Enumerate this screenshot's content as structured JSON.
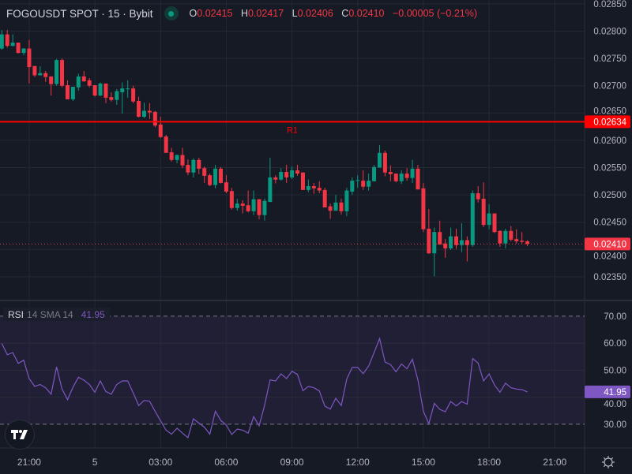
{
  "header": {
    "symbol": "FOGOUSDT SPOT · 15 · Bybit",
    "market_status_color": "#089981",
    "open_label": "O",
    "open": "0.02415",
    "high_label": "H",
    "high": "0.02417",
    "low_label": "L",
    "low": "0.02406",
    "close_label": "C",
    "close": "0.02410",
    "change": "−0.00005 (−0.21%)"
  },
  "rsi_legend": {
    "name": "RSI",
    "params": "14 SMA 14",
    "value": "41.95"
  },
  "colors": {
    "up": "#089981",
    "down": "#f23645",
    "rsi": "#7e57c2",
    "level_line": "#ff0000",
    "background": "#161a25",
    "grid": "#2a2e39"
  },
  "x_ticks": [
    "21:00",
    "5",
    "03:00",
    "06:00",
    "09:00",
    "12:00",
    "15:00",
    "18:00",
    "21:00"
  ],
  "icons": {
    "logo": "tradingview-logo",
    "settings": "gear-icon"
  },
  "chart_data": [
    {
      "type": "candlestick",
      "title": "FOGOUSDT SPOT · 15 · Bybit",
      "ylim": [
        0.02308,
        0.02857
      ],
      "y_ticks": [
        "0.02850",
        "0.02800",
        "0.02750",
        "0.02700",
        "0.02650",
        "0.02600",
        "0.02550",
        "0.02500",
        "0.02450",
        "0.02400",
        "0.02350"
      ],
      "grid": true,
      "horizontal_line": {
        "label": "R1",
        "value": 0.02634,
        "value_label": "0.02634"
      },
      "last_price": {
        "value": 0.0241,
        "value_label": "0.02410"
      },
      "candles_ohlc": [
        [
          0.02768,
          0.02802,
          0.02766,
          0.02794
        ],
        [
          0.02794,
          0.02802,
          0.0277,
          0.02773
        ],
        [
          0.02773,
          0.02794,
          0.02772,
          0.02779
        ],
        [
          0.02779,
          0.02779,
          0.02759,
          0.0276
        ],
        [
          0.0276,
          0.02769,
          0.02756,
          0.02768
        ],
        [
          0.02768,
          0.02784,
          0.02704,
          0.02734
        ],
        [
          0.02736,
          0.02736,
          0.02716,
          0.02719
        ],
        [
          0.02719,
          0.02736,
          0.02719,
          0.02723
        ],
        [
          0.02723,
          0.02727,
          0.02707,
          0.02716
        ],
        [
          0.02717,
          0.02717,
          0.02682,
          0.02703
        ],
        [
          0.02703,
          0.02749,
          0.027,
          0.02747
        ],
        [
          0.02747,
          0.0275,
          0.02697,
          0.027
        ],
        [
          0.02701,
          0.0271,
          0.02675,
          0.02675
        ],
        [
          0.02675,
          0.02698,
          0.02672,
          0.02698
        ],
        [
          0.02697,
          0.02722,
          0.02691,
          0.02717
        ],
        [
          0.02717,
          0.02727,
          0.02707,
          0.02708
        ],
        [
          0.0271,
          0.02714,
          0.02697,
          0.027
        ],
        [
          0.02701,
          0.02701,
          0.0268,
          0.02682
        ],
        [
          0.02682,
          0.02706,
          0.02681,
          0.02704
        ],
        [
          0.02704,
          0.02704,
          0.02668,
          0.02678
        ],
        [
          0.02679,
          0.02688,
          0.02671,
          0.02674
        ],
        [
          0.02674,
          0.02694,
          0.02665,
          0.0269
        ],
        [
          0.02688,
          0.02706,
          0.02649,
          0.02695
        ],
        [
          0.02695,
          0.0271,
          0.02678,
          0.02695
        ],
        [
          0.02695,
          0.027,
          0.02668,
          0.02671
        ],
        [
          0.02672,
          0.0268,
          0.02642,
          0.02643
        ],
        [
          0.02643,
          0.02669,
          0.02641,
          0.02654
        ],
        [
          0.02654,
          0.02668,
          0.02639,
          0.02651
        ],
        [
          0.02652,
          0.02654,
          0.02624,
          0.02627
        ],
        [
          0.02629,
          0.02643,
          0.02604,
          0.02606
        ],
        [
          0.02607,
          0.0261,
          0.02577,
          0.02577
        ],
        [
          0.02578,
          0.02586,
          0.02561,
          0.02564
        ],
        [
          0.02564,
          0.02574,
          0.02558,
          0.02573
        ],
        [
          0.02573,
          0.02586,
          0.02549,
          0.02554
        ],
        [
          0.02555,
          0.02565,
          0.02536,
          0.02541
        ],
        [
          0.02541,
          0.02567,
          0.02532,
          0.02564
        ],
        [
          0.02564,
          0.02568,
          0.02538,
          0.02548
        ],
        [
          0.02549,
          0.02552,
          0.02522,
          0.02535
        ],
        [
          0.02536,
          0.02539,
          0.02516,
          0.02518
        ],
        [
          0.02518,
          0.02555,
          0.02512,
          0.02548
        ],
        [
          0.02548,
          0.02551,
          0.02521,
          0.02522
        ],
        [
          0.02523,
          0.02536,
          0.02503,
          0.02506
        ],
        [
          0.02507,
          0.02513,
          0.02473,
          0.02476
        ],
        [
          0.02476,
          0.02493,
          0.02471,
          0.02484
        ],
        [
          0.02484,
          0.0249,
          0.02466,
          0.0248
        ],
        [
          0.02481,
          0.02508,
          0.02468,
          0.0247
        ],
        [
          0.0247,
          0.02508,
          0.02463,
          0.02492
        ],
        [
          0.02492,
          0.02492,
          0.02455,
          0.02463
        ],
        [
          0.02463,
          0.02493,
          0.02453,
          0.02489
        ],
        [
          0.02487,
          0.02568,
          0.02487,
          0.02532
        ],
        [
          0.02532,
          0.02536,
          0.02521,
          0.02528
        ],
        [
          0.02528,
          0.02549,
          0.02526,
          0.02542
        ],
        [
          0.02542,
          0.02555,
          0.02522,
          0.02532
        ],
        [
          0.02532,
          0.02552,
          0.02529,
          0.02545
        ],
        [
          0.02545,
          0.02555,
          0.02535,
          0.02539
        ],
        [
          0.02541,
          0.02541,
          0.02509,
          0.02509
        ],
        [
          0.02509,
          0.02528,
          0.02505,
          0.02516
        ],
        [
          0.02516,
          0.02522,
          0.02502,
          0.02512
        ],
        [
          0.02513,
          0.02525,
          0.02503,
          0.02508
        ],
        [
          0.02509,
          0.02513,
          0.02477,
          0.02477
        ],
        [
          0.02479,
          0.02484,
          0.02456,
          0.02471
        ],
        [
          0.02471,
          0.025,
          0.02471,
          0.02486
        ],
        [
          0.02486,
          0.02493,
          0.02464,
          0.0247
        ],
        [
          0.0247,
          0.02513,
          0.02461,
          0.02508
        ],
        [
          0.02506,
          0.02532,
          0.025,
          0.02526
        ],
        [
          0.02526,
          0.02536,
          0.02513,
          0.02527
        ],
        [
          0.02526,
          0.02545,
          0.02509,
          0.02515
        ],
        [
          0.02515,
          0.02539,
          0.02508,
          0.02526
        ],
        [
          0.02525,
          0.02555,
          0.02525,
          0.02551
        ],
        [
          0.0255,
          0.02591,
          0.0255,
          0.02577
        ],
        [
          0.02577,
          0.02581,
          0.02534,
          0.02541
        ],
        [
          0.02542,
          0.02554,
          0.02525,
          0.02538
        ],
        [
          0.02539,
          0.02539,
          0.02523,
          0.02525
        ],
        [
          0.02525,
          0.02545,
          0.0252,
          0.02539
        ],
        [
          0.02539,
          0.02549,
          0.02526,
          0.02531
        ],
        [
          0.02531,
          0.02564,
          0.02522,
          0.02548
        ],
        [
          0.02548,
          0.02555,
          0.0251,
          0.0251
        ],
        [
          0.02512,
          0.02522,
          0.02432,
          0.02437
        ],
        [
          0.02438,
          0.02474,
          0.02392,
          0.02393
        ],
        [
          0.02393,
          0.0244,
          0.02351,
          0.02432
        ],
        [
          0.02432,
          0.02453,
          0.02409,
          0.02409
        ],
        [
          0.02411,
          0.02419,
          0.02385,
          0.02402
        ],
        [
          0.02402,
          0.0244,
          0.02399,
          0.02424
        ],
        [
          0.02424,
          0.02438,
          0.02401,
          0.02408
        ],
        [
          0.02408,
          0.02448,
          0.02395,
          0.02417
        ],
        [
          0.02417,
          0.02424,
          0.02378,
          0.02408
        ],
        [
          0.02408,
          0.02508,
          0.02405,
          0.02503
        ],
        [
          0.02503,
          0.02516,
          0.02486,
          0.02492
        ],
        [
          0.02493,
          0.02523,
          0.02441,
          0.02445
        ],
        [
          0.02445,
          0.02483,
          0.02437,
          0.02466
        ],
        [
          0.02466,
          0.02466,
          0.0243,
          0.02432
        ],
        [
          0.02434,
          0.02435,
          0.02405,
          0.02411
        ],
        [
          0.02411,
          0.02438,
          0.02402,
          0.02434
        ],
        [
          0.02434,
          0.02443,
          0.02415,
          0.02418
        ],
        [
          0.02419,
          0.02437,
          0.02411,
          0.02415
        ],
        [
          0.02416,
          0.02432,
          0.02411,
          0.02414
        ],
        [
          0.02415,
          0.02417,
          0.02406,
          0.0241
        ]
      ]
    },
    {
      "type": "line",
      "name": "RSI",
      "ylim": [
        21.2,
        75.5
      ],
      "y_ticks": [
        "70.00",
        "60.00",
        "50.00",
        "40.00",
        "30.00"
      ],
      "band": [
        30,
        70
      ],
      "last_value_label": "41.95",
      "values": [
        59.9,
        55.7,
        56.5,
        52.5,
        53.7,
        46.9,
        44.0,
        44.7,
        43.5,
        41.1,
        51.2,
        43.0,
        39.1,
        43.7,
        47.4,
        46.3,
        44.7,
        41.8,
        46.0,
        42.1,
        41.1,
        44.7,
        46.0,
        46.0,
        41.6,
        36.9,
        38.8,
        38.5,
        34.8,
        31.2,
        27.8,
        26.3,
        28.5,
        26.7,
        25.0,
        32.0,
        30.4,
        28.9,
        26.3,
        34.8,
        31.4,
        29.7,
        26.2,
        28.2,
        27.8,
        26.7,
        32.8,
        29.4,
        37.0,
        46.4,
        46.0,
        48.6,
        46.9,
        49.6,
        48.4,
        42.4,
        44.0,
        43.5,
        42.3,
        36.7,
        35.6,
        39.6,
        36.9,
        46.7,
        51.0,
        51.0,
        48.7,
        51.5,
        56.5,
        61.7,
        53.0,
        52.1,
        49.4,
        52.3,
        50.5,
        54.0,
        46.4,
        34.8,
        30.2,
        37.7,
        35.5,
        34.6,
        38.4,
        36.8,
        38.4,
        37.4,
        54.3,
        52.6,
        46.0,
        48.6,
        44.5,
        41.8,
        45.2,
        43.5,
        43.0,
        42.8,
        41.95
      ]
    }
  ]
}
